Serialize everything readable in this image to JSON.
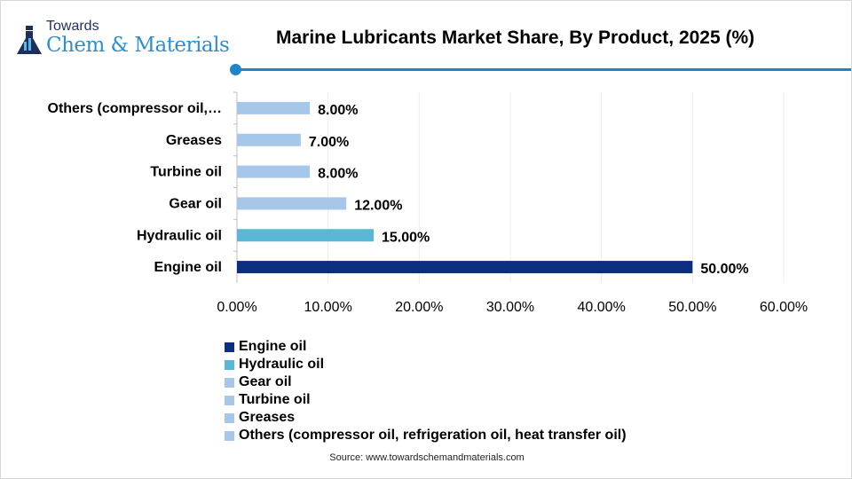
{
  "header": {
    "logo_small": "Towards",
    "logo_big": "Chem & Materials",
    "title": "Marine Lubricants Market Share, By Product, 2025 (%)"
  },
  "chart_data": {
    "type": "bar",
    "orientation": "horizontal",
    "title": "Marine Lubricants Market Share, By Product, 2025 (%)",
    "categories": [
      "Engine oil",
      "Hydraulic oil",
      "Gear oil",
      "Turbine oil",
      "Greases",
      "Others (compressor oil, refrigeration oil, heat transfer oil)"
    ],
    "category_tick_labels": [
      "Engine oil",
      "Hydraulic oil",
      "Gear oil",
      "Turbine oil",
      "Greases",
      "Others (compressor oil,…"
    ],
    "values": [
      50,
      15,
      12,
      8,
      7,
      8
    ],
    "data_labels": [
      "50.00%",
      "15.00%",
      "12.00%",
      "8.00%",
      "7.00%",
      "8.00%"
    ],
    "colors": [
      "#0b2e80",
      "#5ab8d6",
      "#a7c7ea",
      "#a7c7ea",
      "#a7c7ea",
      "#a7c7ea"
    ],
    "xlim": [
      0,
      60
    ],
    "x_ticks": [
      "0.00%",
      "10.00%",
      "20.00%",
      "30.00%",
      "40.00%",
      "50.00%",
      "60.00%"
    ],
    "grid": true,
    "legend": "bottom"
  },
  "source": "Source: www.towardschemandmaterials.com"
}
